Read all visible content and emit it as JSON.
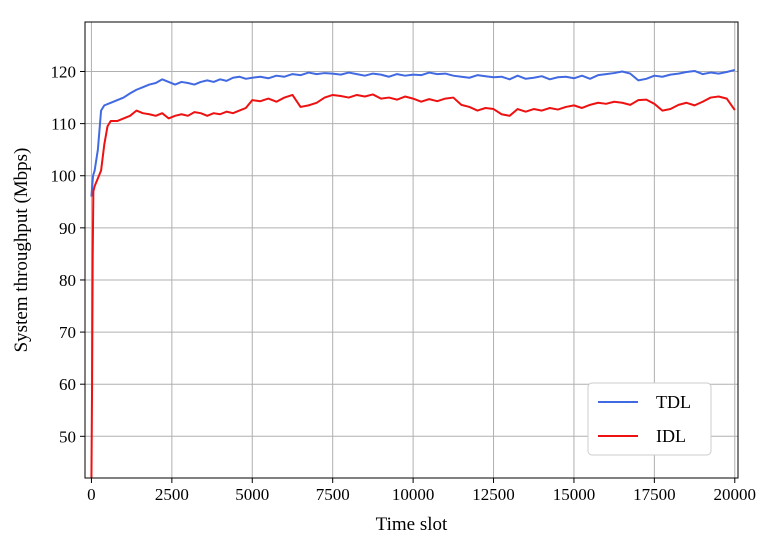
{
  "chart_data": {
    "type": "line",
    "title": "",
    "xlabel": "Time slot",
    "ylabel": "System throughput (Mbps)",
    "xlim": [
      -200,
      20100
    ],
    "ylim": [
      42,
      129.5
    ],
    "xticks": [
      0,
      2500,
      5000,
      7500,
      10000,
      12500,
      15000,
      17500,
      20000
    ],
    "yticks": [
      50,
      60,
      70,
      80,
      90,
      100,
      110,
      120
    ],
    "grid": true,
    "legend_position": "lower-right",
    "series": [
      {
        "name": "TDL",
        "color": "#4169e1",
        "x": [
          0,
          50,
          100,
          200,
          300,
          400,
          600,
          800,
          1000,
          1200,
          1400,
          1600,
          1800,
          2000,
          2200,
          2400,
          2600,
          2800,
          3000,
          3200,
          3400,
          3600,
          3800,
          4000,
          4200,
          4400,
          4600,
          4800,
          5000,
          5250,
          5500,
          5750,
          6000,
          6250,
          6500,
          6750,
          7000,
          7250,
          7500,
          7750,
          8000,
          8250,
          8500,
          8750,
          9000,
          9250,
          9500,
          9750,
          10000,
          10250,
          10500,
          10750,
          11000,
          11250,
          11500,
          11750,
          12000,
          12250,
          12500,
          12750,
          13000,
          13250,
          13500,
          13750,
          14000,
          14250,
          14500,
          14750,
          15000,
          15250,
          15500,
          15750,
          16000,
          16250,
          16500,
          16750,
          17000,
          17250,
          17500,
          17750,
          18000,
          18250,
          18500,
          18750,
          19000,
          19250,
          19500,
          19750,
          20000
        ],
        "values": [
          96,
          100,
          101,
          105,
          112.5,
          113.5,
          114,
          114.5,
          115,
          115.8,
          116.5,
          117,
          117.5,
          117.8,
          118.5,
          118,
          117.5,
          118,
          117.8,
          117.5,
          118,
          118.3,
          118,
          118.5,
          118.2,
          118.8,
          119,
          118.6,
          118.8,
          119,
          118.7,
          119.2,
          119,
          119.5,
          119.3,
          119.8,
          119.5,
          119.7,
          119.6,
          119.4,
          119.8,
          119.5,
          119.2,
          119.6,
          119.4,
          119,
          119.5,
          119.2,
          119.4,
          119.3,
          119.8,
          119.5,
          119.6,
          119.2,
          119,
          118.8,
          119.3,
          119.1,
          118.9,
          119,
          118.5,
          119.2,
          118.6,
          118.8,
          119.1,
          118.5,
          118.9,
          119,
          118.7,
          119.2,
          118.6,
          119.3,
          119.5,
          119.7,
          120,
          119.6,
          118.3,
          118.6,
          119.2,
          119,
          119.4,
          119.6,
          119.9,
          120.1,
          119.5,
          119.8,
          119.6,
          119.9,
          120.3
        ]
      },
      {
        "name": "IDL",
        "color": "#ee1111",
        "x": [
          0,
          20,
          40,
          60,
          100,
          200,
          300,
          400,
          500,
          600,
          800,
          1000,
          1200,
          1400,
          1600,
          1800,
          2000,
          2200,
          2400,
          2600,
          2800,
          3000,
          3200,
          3400,
          3600,
          3800,
          4000,
          4200,
          4400,
          4600,
          4800,
          5000,
          5250,
          5500,
          5750,
          6000,
          6250,
          6500,
          6750,
          7000,
          7250,
          7500,
          7750,
          8000,
          8250,
          8500,
          8750,
          9000,
          9250,
          9500,
          9750,
          10000,
          10250,
          10500,
          10750,
          11000,
          11250,
          11500,
          11750,
          12000,
          12250,
          12500,
          12750,
          13000,
          13250,
          13500,
          13750,
          14000,
          14250,
          14500,
          14750,
          15000,
          15250,
          15500,
          15750,
          16000,
          16250,
          16500,
          16750,
          17000,
          17250,
          17500,
          17750,
          18000,
          18250,
          18500,
          18750,
          19000,
          19250,
          19500,
          19750,
          20000
        ],
        "values": [
          42,
          60,
          85,
          97,
          98,
          99.5,
          101,
          106,
          109.5,
          110.5,
          110.5,
          111,
          111.5,
          112.5,
          112,
          111.8,
          111.5,
          112,
          111,
          111.5,
          111.8,
          111.5,
          112.2,
          112,
          111.5,
          112,
          111.8,
          112.3,
          112,
          112.5,
          113,
          114.5,
          114.3,
          114.8,
          114.2,
          115,
          115.5,
          113.2,
          113.5,
          114,
          115,
          115.5,
          115.3,
          115,
          115.5,
          115.2,
          115.6,
          114.8,
          115,
          114.6,
          115.2,
          114.8,
          114.2,
          114.7,
          114.3,
          114.8,
          115,
          113.6,
          113.2,
          112.5,
          113,
          112.8,
          111.8,
          111.5,
          112.8,
          112.3,
          112.8,
          112.5,
          113,
          112.7,
          113.2,
          113.5,
          113,
          113.6,
          114,
          113.8,
          114.2,
          114,
          113.6,
          114.5,
          114.6,
          113.8,
          112.5,
          112.8,
          113.6,
          114,
          113.5,
          114.2,
          115,
          115.2,
          114.8,
          112.6
        ]
      }
    ]
  }
}
